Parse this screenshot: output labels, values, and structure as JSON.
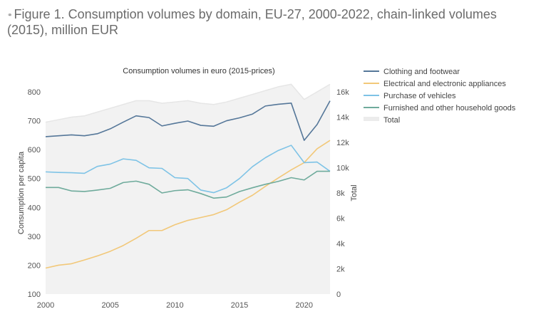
{
  "figure": {
    "title": "Figure 1. Consumption volumes by domain, EU-27, 2000-2022, chain-linked volumes (2015), million EUR",
    "title_mark_icon": "link-icon"
  },
  "chart_data": {
    "type": "line",
    "title": "Consumption volumes in euro (2015-prices)",
    "xlabel": "",
    "ylabel": "Consumption per capita",
    "y2label": "Total",
    "x": [
      2000,
      2001,
      2002,
      2003,
      2004,
      2005,
      2006,
      2007,
      2008,
      2009,
      2010,
      2011,
      2012,
      2013,
      2014,
      2015,
      2016,
      2017,
      2018,
      2019,
      2020,
      2021,
      2022
    ],
    "xlim": [
      2000,
      2022
    ],
    "xticks": [
      2000,
      2005,
      2010,
      2015,
      2020
    ],
    "ylim": [
      100,
      800
    ],
    "yticks": [
      100,
      200,
      300,
      400,
      500,
      600,
      700,
      800
    ],
    "y2lim": [
      0,
      16000
    ],
    "y2ticks": [
      0,
      2000,
      4000,
      6000,
      8000,
      10000,
      12000,
      14000,
      16000
    ],
    "y2ticklabels": [
      "0",
      "2k",
      "4k",
      "6k",
      "8k",
      "10k",
      "12k",
      "14k",
      "16k"
    ],
    "grid": false,
    "legend_position": "top-right",
    "series": [
      {
        "name": "Clothing and footwear",
        "color": "#557799",
        "axis": "left",
        "values": [
          645,
          648,
          651,
          648,
          655,
          672,
          695,
          717,
          711,
          682,
          691,
          699,
          684,
          681,
          700,
          710,
          723,
          751,
          757,
          761,
          632,
          687,
          769
        ]
      },
      {
        "name": "Electrical and electronic appliances",
        "color": "#f2c879",
        "axis": "left",
        "values": [
          190,
          200,
          205,
          218,
          232,
          248,
          268,
          293,
          320,
          320,
          340,
          355,
          365,
          375,
          392,
          418,
          442,
          473,
          502,
          530,
          555,
          603,
          632
        ]
      },
      {
        "name": "Purchase of vehicles",
        "color": "#7ec3e6",
        "axis": "left",
        "values": [
          523,
          521,
          520,
          518,
          542,
          550,
          568,
          563,
          537,
          535,
          503,
          500,
          460,
          451,
          468,
          500,
          541,
          572,
          597,
          615,
          555,
          557,
          525
        ]
      },
      {
        "name": "Furnished and other household goods",
        "color": "#6fab9c",
        "axis": "left",
        "values": [
          469,
          469,
          457,
          455,
          460,
          466,
          486,
          491,
          480,
          450,
          458,
          461,
          448,
          432,
          436,
          455,
          468,
          480,
          490,
          503,
          495,
          525,
          525
        ]
      },
      {
        "name": "Total",
        "color": "#eeeeee",
        "axis": "right",
        "type": "area",
        "values": [
          13600,
          13800,
          14000,
          14100,
          14400,
          14700,
          15000,
          15300,
          15300,
          15100,
          15200,
          15300,
          15100,
          15000,
          15200,
          15500,
          15800,
          16100,
          16400,
          16600,
          15400,
          16000,
          16600
        ]
      }
    ]
  }
}
